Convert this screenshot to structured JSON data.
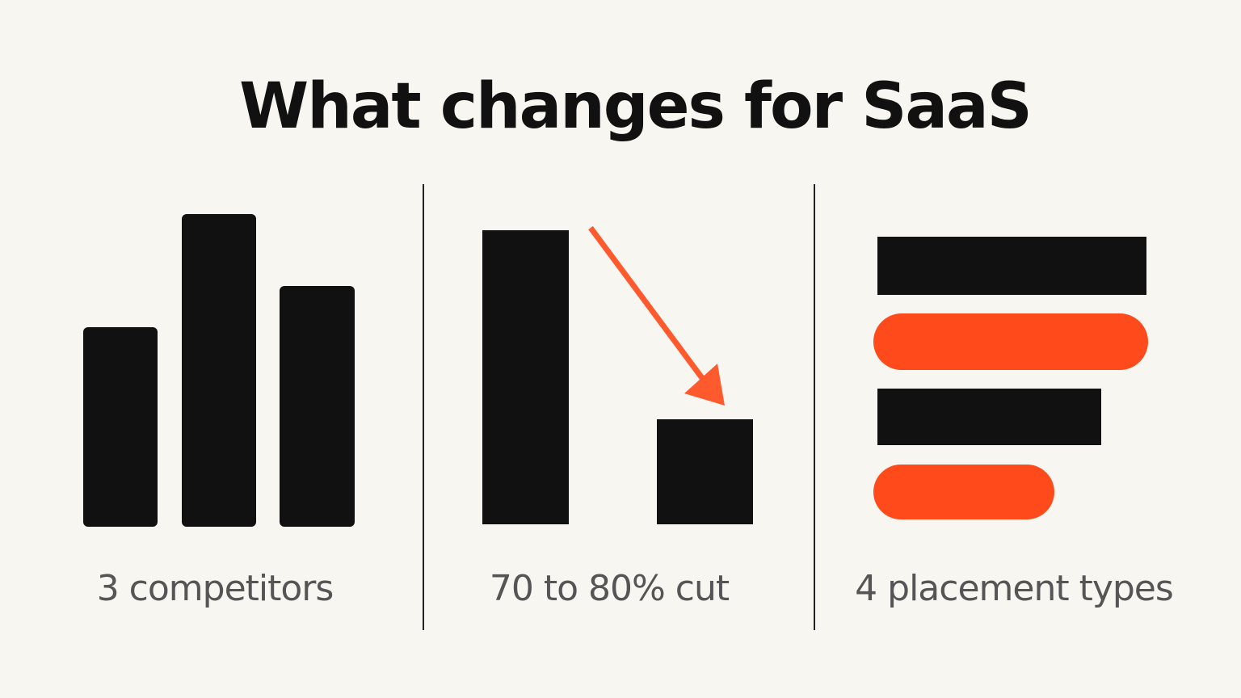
{
  "title": "What changes for SaaS",
  "panels": [
    {
      "caption": "3 competitors"
    },
    {
      "caption": "70 to 80% cut"
    },
    {
      "caption": "4 placement types"
    }
  ]
}
